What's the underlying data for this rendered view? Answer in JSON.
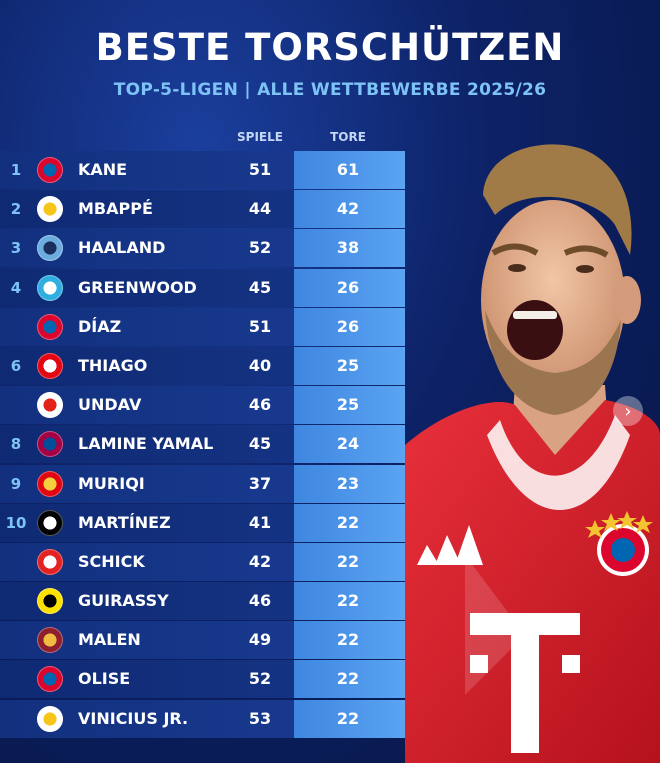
{
  "header": {
    "title": "BESTE TORSCHÜTZEN",
    "subtitle": "TOP-5-LIGEN | ALLE WETTBEWERBE 2025/26"
  },
  "columns": {
    "games": "SPIELE",
    "goals": "TORE"
  },
  "players": [
    {
      "rank": "1",
      "name": "KANE",
      "games": "51",
      "goals": "61",
      "club_icon": "bayern-crest-icon",
      "colors": [
        "#dc052d",
        "#0066b2"
      ]
    },
    {
      "rank": "2",
      "name": "MBAPPÉ",
      "games": "44",
      "goals": "42",
      "club_icon": "real-madrid-crest-icon",
      "colors": [
        "#ffffff",
        "#f5c518"
      ]
    },
    {
      "rank": "3",
      "name": "HAALAND",
      "games": "52",
      "goals": "38",
      "club_icon": "man-city-crest-icon",
      "colors": [
        "#6cabdd",
        "#1c2c5b"
      ]
    },
    {
      "rank": "4",
      "name": "GREENWOOD",
      "games": "45",
      "goals": "26",
      "club_icon": "marseille-crest-icon",
      "colors": [
        "#2faee0",
        "#ffffff"
      ]
    },
    {
      "rank": "",
      "name": "DÍAZ",
      "games": "51",
      "goals": "26",
      "club_icon": "bayern-crest-icon",
      "colors": [
        "#dc052d",
        "#0066b2"
      ]
    },
    {
      "rank": "6",
      "name": "THIAGO",
      "games": "40",
      "goals": "25",
      "club_icon": "brentford-crest-icon",
      "colors": [
        "#e30613",
        "#ffffff"
      ]
    },
    {
      "rank": "",
      "name": "UNDAV",
      "games": "46",
      "goals": "25",
      "club_icon": "stuttgart-crest-icon",
      "colors": [
        "#ffffff",
        "#e32219"
      ]
    },
    {
      "rank": "8",
      "name": "LAMINE YAMAL",
      "games": "45",
      "goals": "24",
      "club_icon": "barcelona-crest-icon",
      "colors": [
        "#a50044",
        "#004d98"
      ]
    },
    {
      "rank": "9",
      "name": "MURIQI",
      "games": "37",
      "goals": "23",
      "club_icon": "mallorca-crest-icon",
      "colors": [
        "#e20613",
        "#f4d03f"
      ]
    },
    {
      "rank": "10",
      "name": "MARTÍNEZ",
      "games": "41",
      "goals": "22",
      "club_icon": "inter-crest-icon",
      "colors": [
        "#000000",
        "#ffffff"
      ]
    },
    {
      "rank": "",
      "name": "SCHICK",
      "games": "42",
      "goals": "22",
      "club_icon": "leverkusen-crest-icon",
      "colors": [
        "#e32221",
        "#ffffff"
      ]
    },
    {
      "rank": "",
      "name": "GUIRASSY",
      "games": "46",
      "goals": "22",
      "club_icon": "dortmund-crest-icon",
      "colors": [
        "#fde100",
        "#000000"
      ]
    },
    {
      "rank": "",
      "name": "MALEN",
      "games": "49",
      "goals": "22",
      "club_icon": "roma-crest-icon",
      "colors": [
        "#8e1f2f",
        "#f0bc42"
      ]
    },
    {
      "rank": "",
      "name": "OLISE",
      "games": "52",
      "goals": "22",
      "club_icon": "bayern-crest-icon",
      "colors": [
        "#dc052d",
        "#0066b2"
      ]
    },
    {
      "rank": "",
      "name": "VINICIUS JR.",
      "games": "53",
      "goals": "22",
      "club_icon": "real-madrid-crest-icon",
      "colors": [
        "#ffffff",
        "#f5c518"
      ]
    }
  ],
  "photo": {
    "icon": "player-photo-icon",
    "jersey_colors": [
      "#d61f2c",
      "#ffffff"
    ],
    "jersey_crest": "FC BAYERN MÜNCHEN",
    "jersey_sponsor": "T"
  },
  "carousel": {
    "icon": "chevron-right-icon",
    "glyph": "›"
  }
}
